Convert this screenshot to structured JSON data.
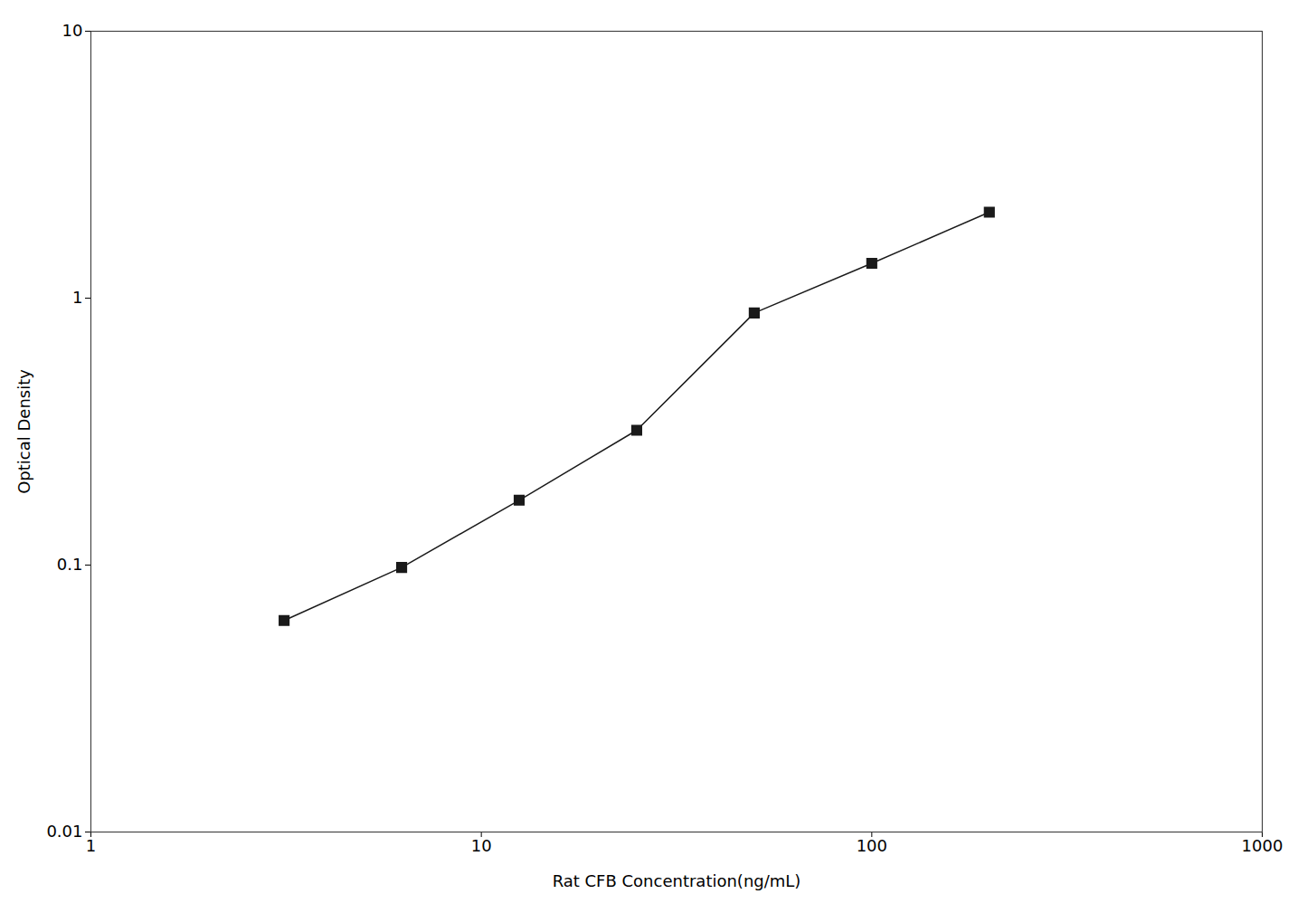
{
  "chart_data": {
    "type": "line",
    "xlabel": "Rat CFB Concentration(ng/mL)",
    "ylabel": "Optical Density",
    "x": [
      3.125,
      6.25,
      12.5,
      25,
      50,
      100,
      200
    ],
    "values": [
      0.062,
      0.098,
      0.175,
      0.32,
      0.88,
      1.35,
      2.1
    ],
    "color": "#1a1a1a",
    "marker": "square",
    "log": true,
    "xlim": [
      1,
      1000
    ],
    "ylim": [
      0.01,
      10
    ],
    "xticks": [
      1,
      10,
      100,
      1000
    ],
    "yticks": [
      0.01,
      0.1,
      1,
      10
    ],
    "grid": false
  }
}
